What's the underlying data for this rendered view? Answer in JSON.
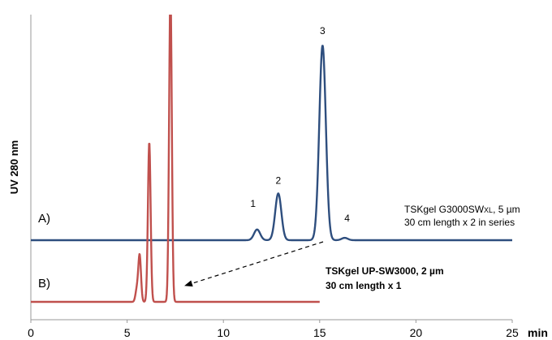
{
  "chart_data": {
    "type": "line",
    "ylabel": "UV 280 nm",
    "xunit": "min",
    "xlim": [
      0,
      25
    ],
    "xticks": [
      0,
      5,
      10,
      15,
      20,
      25
    ],
    "grid": false,
    "series": [
      {
        "name": "A)",
        "color": "#2e4e7e",
        "x_range": [
          0,
          25
        ],
        "baseline": 0,
        "peaks": [
          {
            "label": "1",
            "x": 11.75,
            "height": 0.055
          },
          {
            "label": "2",
            "x": 12.85,
            "height": 0.24
          },
          {
            "label": "3",
            "x": 15.15,
            "height": 1.0
          },
          {
            "label": "4",
            "x": 16.3,
            "height": 0.012
          }
        ],
        "annotation": [
          "TSKgel G3000SW",
          "XL",
          ", 5 µm",
          "30 cm length x 2 in series"
        ]
      },
      {
        "name": "B)",
        "color": "#c0504d",
        "x_range": [
          0,
          15
        ],
        "baseline": 0,
        "peaks": [
          {
            "x": 5.5,
            "height": 0.06
          },
          {
            "x": 5.65,
            "height": 0.24
          },
          {
            "x": 6.15,
            "height": 0.82
          },
          {
            "x": 7.25,
            "height": 1.6
          }
        ],
        "annotation": [
          "TSKgel UP-SW3000, 2 µm",
          "30 cm length x 1"
        ]
      }
    ],
    "peak_labels": [
      "1",
      "2",
      "3",
      "4"
    ]
  }
}
